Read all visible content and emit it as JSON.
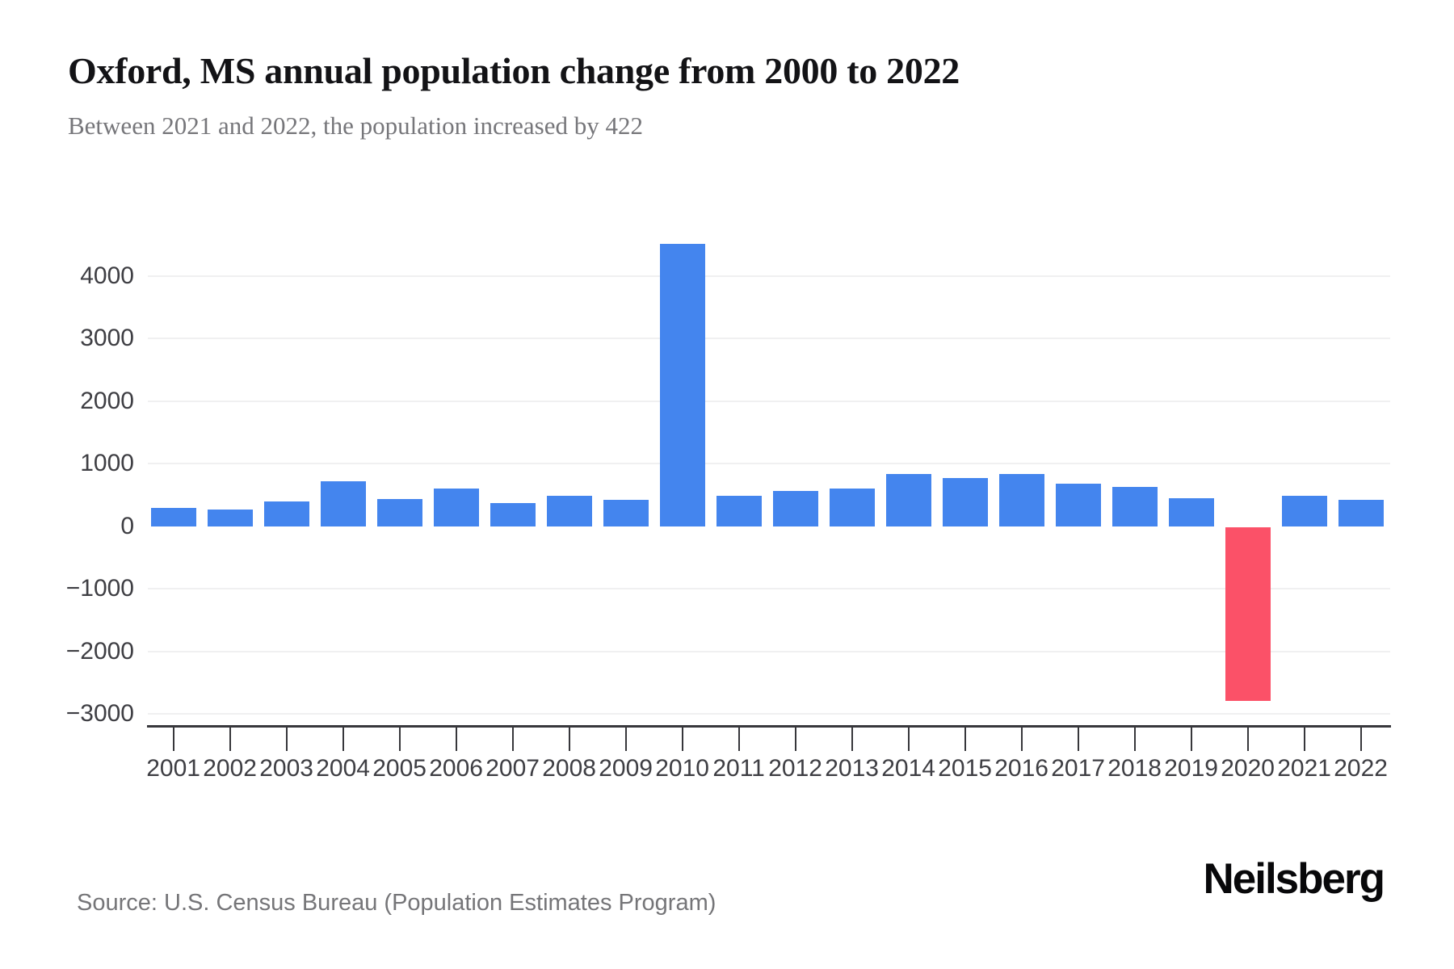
{
  "header": {
    "title": "Oxford, MS annual population change from 2000 to 2022",
    "subtitle": "Between 2021 and 2022, the population increased by 422"
  },
  "footer": {
    "source": "Source: U.S. Census Bureau (Population Estimates Program)",
    "brand": "Neilsberg"
  },
  "chart_data": {
    "type": "bar",
    "title": "Oxford, MS annual population change from 2000 to 2022",
    "subtitle": "Between 2021 and 2022, the population increased by 422",
    "series_name": "Annual population change",
    "categories": [
      "2001",
      "2002",
      "2003",
      "2004",
      "2005",
      "2006",
      "2007",
      "2008",
      "2009",
      "2010",
      "2011",
      "2012",
      "2013",
      "2014",
      "2015",
      "2016",
      "2017",
      "2018",
      "2019",
      "2020",
      "2021",
      "2022"
    ],
    "values": [
      295,
      275,
      395,
      720,
      445,
      600,
      380,
      490,
      420,
      4515,
      490,
      570,
      610,
      840,
      770,
      845,
      690,
      630,
      450,
      -2780,
      495,
      422
    ],
    "highlight_category": "2020",
    "y_ticks": [
      4000,
      3000,
      2000,
      1000,
      0,
      -1000,
      -2000,
      -3000
    ],
    "y_tick_labels": [
      "4000",
      "3000",
      "2000",
      "1000",
      "0",
      "−1000",
      "−2000",
      "−3000"
    ],
    "ylim": [
      -3000,
      4600
    ],
    "xlabel": "",
    "ylabel": "",
    "grid": "horizontal-light",
    "legend": "none",
    "colors": {
      "positive_bar": "#4485ee",
      "negative_bar": "#fb5168",
      "gridline": "#f0f0f1",
      "axis": "#37373b",
      "axis_label": "#3e3e43",
      "title": "#131316",
      "subtitle": "#76767a",
      "source": "#757578",
      "background": "#ffffff"
    }
  }
}
